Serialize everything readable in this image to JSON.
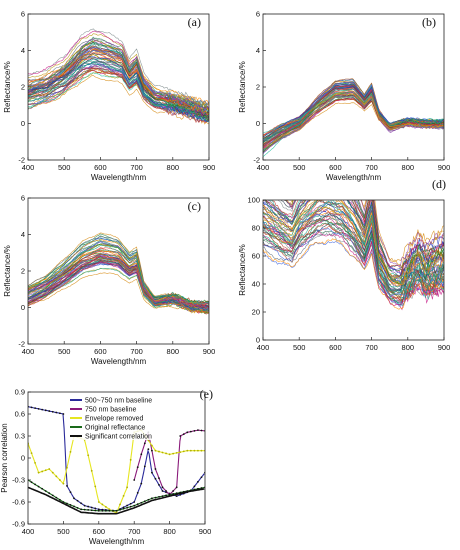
{
  "chart_data": [
    {
      "type": "line",
      "panel_label": "(a)",
      "xlabel": "Wavelength/nm",
      "ylabel": "Reflectance/%",
      "xlim": [
        400,
        900
      ],
      "ylim": [
        -2,
        6
      ],
      "xticks": [
        400,
        500,
        600,
        700,
        800,
        900
      ],
      "yticks": [
        -2,
        0,
        2,
        4,
        6
      ],
      "series_count": 60,
      "mean_profile": {
        "x": [
          400,
          450,
          500,
          550,
          580,
          620,
          660,
          680,
          700,
          720,
          750,
          800,
          850,
          900
        ],
        "y": [
          1.7,
          2.0,
          2.6,
          3.6,
          3.9,
          3.7,
          3.4,
          2.6,
          3.0,
          2.0,
          1.4,
          1.2,
          0.9,
          0.6
        ]
      },
      "spread": [
        0.7,
        0.5
      ]
    },
    {
      "type": "line",
      "panel_label": "(b)",
      "xlabel": "Wavelength/nm",
      "ylabel": "Reflectance/%",
      "xlim": [
        400,
        900
      ],
      "ylim": [
        -2,
        6
      ],
      "xticks": [
        400,
        500,
        600,
        700,
        800,
        900
      ],
      "yticks": [
        -2,
        0,
        2,
        4,
        6
      ],
      "series_count": 60,
      "mean_profile": {
        "x": [
          400,
          450,
          500,
          550,
          600,
          650,
          680,
          700,
          720,
          750,
          800,
          850,
          900
        ],
        "y": [
          -1.2,
          -0.5,
          0.0,
          1.0,
          1.8,
          1.9,
          1.2,
          1.7,
          0.5,
          -0.2,
          0.1,
          0.0,
          0.0
        ]
      },
      "spread": [
        0.45,
        0.25
      ]
    },
    {
      "type": "line",
      "panel_label": "(c)",
      "xlabel": "Wavelength/nm",
      "ylabel": "Reflectance/%",
      "xlim": [
        400,
        900
      ],
      "ylim": [
        -2,
        6
      ],
      "xticks": [
        400,
        500,
        600,
        700,
        800,
        900
      ],
      "yticks": [
        -2,
        0,
        2,
        4,
        6
      ],
      "series_count": 60,
      "mean_profile": {
        "x": [
          400,
          450,
          500,
          550,
          600,
          650,
          680,
          700,
          720,
          750,
          800,
          850,
          900
        ],
        "y": [
          0.6,
          1.1,
          1.8,
          2.6,
          3.0,
          2.8,
          2.2,
          2.4,
          1.0,
          0.3,
          0.5,
          0.1,
          0.0
        ]
      },
      "spread": [
        0.55,
        0.3
      ]
    },
    {
      "type": "line",
      "panel_label": "(d)",
      "xlabel": "",
      "ylabel": "Reflectance/%",
      "xlim": [
        400,
        900
      ],
      "ylim": [
        0,
        100
      ],
      "xticks": [
        400,
        500,
        600,
        700,
        800,
        900
      ],
      "yticks": [
        0,
        20,
        40,
        60,
        80,
        100
      ],
      "series_count": 60,
      "mean_profile": {
        "x": [
          400,
          450,
          480,
          500,
          550,
          580,
          620,
          650,
          680,
          700,
          720,
          750,
          780,
          800,
          830,
          850,
          880,
          900
        ],
        "y": [
          90,
          80,
          75,
          85,
          98,
          100,
          95,
          85,
          70,
          88,
          55,
          40,
          38,
          45,
          55,
          48,
          52,
          55
        ]
      },
      "spread": [
        8,
        12
      ]
    },
    {
      "type": "line",
      "panel_label": "(e)",
      "xlabel": "Wavelength/nm",
      "ylabel": "Pearson correlation",
      "xlim": [
        400,
        900
      ],
      "ylim": [
        -0.9,
        0.9
      ],
      "xticks": [
        400,
        500,
        600,
        700,
        800,
        900
      ],
      "yticks": [
        -0.9,
        -0.6,
        -0.3,
        0,
        0.3,
        0.6,
        0.9
      ],
      "legend_placement": "top-left",
      "series": [
        {
          "name": "500~750 nm baseline",
          "color": "#2a2a9a",
          "x": [
            400,
            450,
            500,
            510,
            530,
            560,
            600,
            650,
            700,
            720,
            740,
            750,
            780,
            820,
            860,
            900
          ],
          "y": [
            0.7,
            0.65,
            0.6,
            -0.38,
            -0.55,
            -0.65,
            -0.7,
            -0.72,
            -0.6,
            -0.35,
            0.12,
            -0.2,
            -0.45,
            -0.52,
            -0.45,
            -0.2
          ]
        },
        {
          "name": "750 nm baseline",
          "color": "#8a1a7a",
          "x": [
            700,
            720,
            740,
            760,
            780,
            800,
            820,
            830,
            850,
            880,
            900
          ],
          "y": [
            -0.3,
            0.05,
            0.35,
            -0.15,
            -0.4,
            -0.5,
            -0.4,
            0.3,
            0.35,
            0.38,
            0.37
          ]
        },
        {
          "name": "Envelope removed",
          "color": "#e6e620",
          "x": [
            400,
            430,
            460,
            500,
            530,
            560,
            600,
            630,
            650,
            680,
            700,
            720,
            760,
            800,
            850,
            900
          ],
          "y": [
            0.2,
            -0.2,
            -0.15,
            -0.35,
            0.3,
            0.25,
            -0.6,
            -0.7,
            -0.75,
            -0.4,
            0.35,
            0.38,
            0.1,
            0.05,
            0.1,
            0.1
          ]
        },
        {
          "name": "Original reflectance",
          "color": "#1a6a1a",
          "x": [
            400,
            450,
            500,
            550,
            600,
            650,
            700,
            750,
            800,
            850,
            900
          ],
          "y": [
            -0.3,
            -0.45,
            -0.6,
            -0.7,
            -0.72,
            -0.72,
            -0.65,
            -0.55,
            -0.5,
            -0.45,
            -0.4
          ]
        },
        {
          "name": "Significant correlation",
          "color": "#111111",
          "x": [
            400,
            450,
            500,
            550,
            600,
            650,
            700,
            750,
            800,
            850,
            900
          ],
          "y": [
            -0.4,
            -0.5,
            -0.62,
            -0.74,
            -0.76,
            -0.76,
            -0.68,
            -0.58,
            -0.52,
            -0.46,
            -0.42
          ]
        }
      ]
    }
  ]
}
